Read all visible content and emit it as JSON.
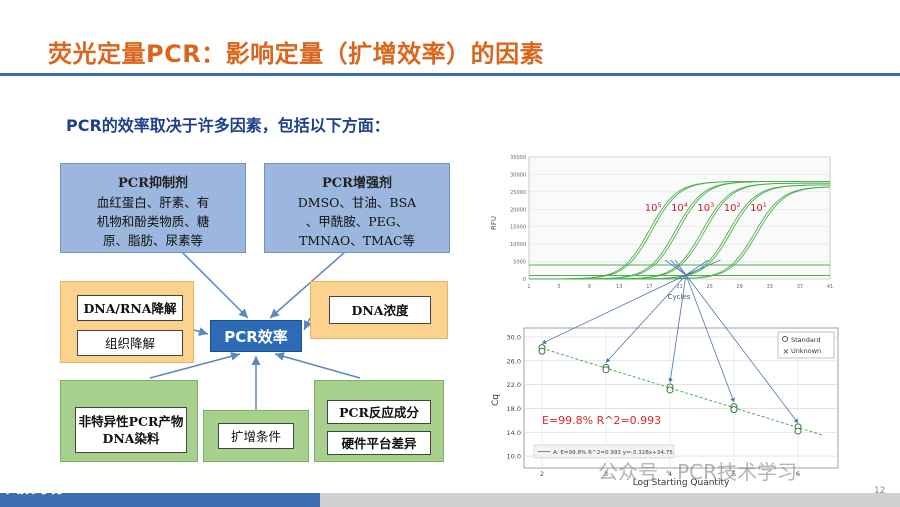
{
  "title": "荧光定量PCR：影响定量（扩增效率）的因素",
  "subtitle": "PCR的效率取决于许多因素，包括以下方面：",
  "center": "PCR效率",
  "inhibitors": {
    "head": "PCR抑制剂",
    "lines": [
      "血红蛋白、肝素、有",
      "机物和酚类物质、糖",
      "原、脂肪、尿素等"
    ]
  },
  "enhancers": {
    "head": "PCR增强剂",
    "lines": [
      "DMSO、甘油、BSA",
      "、甲酰胺、PEG、",
      "TMNAO、TMAC等"
    ]
  },
  "left_mid": {
    "item1": "DNA/RNA降解",
    "item2": "组织降解"
  },
  "right_mid": {
    "item1": "DNA浓度"
  },
  "bottom_left": {
    "line1": "非特异性PCR产物",
    "line2": "DNA染料"
  },
  "bottom_mid": {
    "item1": "扩增条件"
  },
  "bottom_right": {
    "item1": "PCR反应成分",
    "item2": "硬件平台差异"
  },
  "amp_chart": {
    "y_ticks": [
      "35000",
      "30000",
      "25000",
      "20000",
      "15000",
      "10000",
      "5000",
      "0"
    ],
    "x_ticks": [
      "1",
      "5",
      "9",
      "13",
      "17",
      "21",
      "25",
      "29",
      "33",
      "37",
      "41"
    ],
    "xlabel": "Cycles",
    "ylabel": "RFU",
    "series": [
      {
        "label_base": "10",
        "label_exp": "5"
      },
      {
        "label_base": "10",
        "label_exp": "4"
      },
      {
        "label_base": "10",
        "label_exp": "3"
      },
      {
        "label_base": "10",
        "label_exp": "2"
      },
      {
        "label_base": "10",
        "label_exp": "1"
      }
    ]
  },
  "std_chart": {
    "y_ticks": [
      "30.0",
      "26.0",
      "22.0",
      "18.0",
      "14.0",
      "10.0"
    ],
    "x_ticks": [
      "2",
      "3",
      "4",
      "5",
      "6"
    ],
    "xlabel": "Log Starting Quantity",
    "ylabel": "Cq",
    "legend_standard": "Standard",
    "legend_unknown": "Unknown",
    "annotation": "E=99.8%  R^2=0.993",
    "fit_legend": "A: E=99.8% R^2=0.993 y=-3.328x+34.75"
  },
  "chart_data": [
    {
      "type": "line",
      "xlabel": "Cycles",
      "ylabel": "RFU",
      "xlim": [
        1,
        41
      ],
      "ylim": [
        0,
        35000
      ],
      "series": [
        {
          "name": "10^5",
          "midpoint_cycle": 17,
          "plateau": 28000
        },
        {
          "name": "10^4",
          "midpoint_cycle": 20.5,
          "plateau": 28000
        },
        {
          "name": "10^3",
          "midpoint_cycle": 24,
          "plateau": 27500
        },
        {
          "name": "10^2",
          "midpoint_cycle": 27.5,
          "plateau": 27000
        },
        {
          "name": "10^1",
          "midpoint_cycle": 31,
          "plateau": 26500
        }
      ],
      "baselines": [
        4000,
        1000
      ]
    },
    {
      "type": "scatter",
      "xlabel": "Log Starting Quantity",
      "ylabel": "Cq",
      "xlim": [
        2,
        6.5
      ],
      "ylim": [
        10,
        30
      ],
      "points": [
        {
          "x": 2,
          "y": 28.2
        },
        {
          "x": 2,
          "y": 27.6
        },
        {
          "x": 3,
          "y": 24.9
        },
        {
          "x": 3,
          "y": 24.5
        },
        {
          "x": 4,
          "y": 21.6
        },
        {
          "x": 4,
          "y": 21.1
        },
        {
          "x": 5,
          "y": 18.3
        },
        {
          "x": 5,
          "y": 17.8
        },
        {
          "x": 6,
          "y": 14.9
        },
        {
          "x": 6,
          "y": 14.2
        }
      ],
      "fit": {
        "slope": -3.328,
        "intercept": 34.75
      },
      "legend": [
        "Standard",
        "Unknown"
      ],
      "legend_position": "top-right"
    }
  ],
  "footer": {
    "page_number": "12",
    "watermark": "公众号 · PCR技术学习",
    "logo": "大数跨境"
  },
  "colors": {
    "title": "#d9661c",
    "center": "#2b6bb8",
    "curve": "#4caf50",
    "label_red": "#c0242b"
  }
}
